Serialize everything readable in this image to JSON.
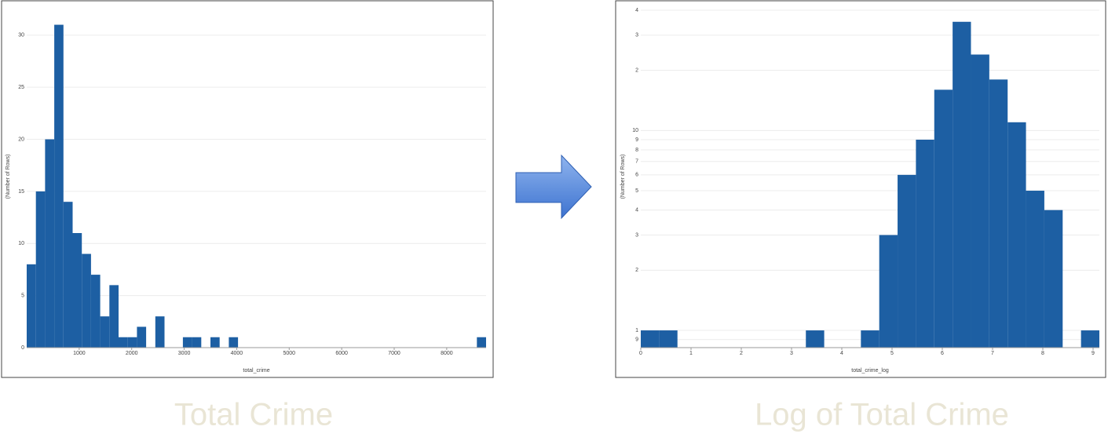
{
  "chart_data": [
    {
      "type": "histogram",
      "title": "Total Crime",
      "x_label": "total_crime",
      "y_label": "(Number of Rows)",
      "bins": [
        0,
        175,
        350,
        525,
        700,
        875,
        1050,
        1225,
        1400,
        1575,
        1750,
        1925,
        2100,
        2275,
        2450,
        2625,
        2800,
        2975,
        3150,
        3325,
        3500,
        3675,
        3850,
        4025,
        4200,
        4375,
        4550,
        4725,
        4900,
        5075,
        5250,
        5425,
        5600,
        5775,
        5950,
        6125,
        6300,
        6475,
        6650,
        6825,
        7000,
        7175,
        7350,
        7525,
        7700,
        7875,
        8050,
        8225,
        8400,
        8575,
        8750
      ],
      "values": [
        8,
        15,
        20,
        31,
        14,
        11,
        9,
        7,
        3,
        6,
        1,
        1,
        2,
        0,
        3,
        0,
        0,
        1,
        1,
        0,
        1,
        0,
        1,
        0,
        0,
        0,
        0,
        0,
        0,
        0,
        0,
        0,
        0,
        0,
        0,
        0,
        0,
        0,
        0,
        0,
        0,
        0,
        0,
        0,
        0,
        0,
        0,
        0,
        0,
        1
      ],
      "color": "#1d5fa3",
      "xlim": [
        0,
        8750
      ],
      "xticks": [
        1000,
        2000,
        3000,
        4000,
        5000,
        6000,
        7000,
        8000
      ],
      "ylim": [
        0,
        33
      ],
      "yticks": [
        0,
        5,
        10,
        15,
        20,
        25,
        30
      ],
      "grid": true,
      "log_y": false
    },
    {
      "type": "histogram",
      "title": "Log of Total Crime",
      "x_label": "total_crime_log",
      "y_label": "(Number of Rows)",
      "bins": [
        0,
        0.365,
        0.73,
        1.095,
        1.46,
        1.825,
        2.19,
        2.555,
        2.92,
        3.285,
        3.65,
        4.015,
        4.38,
        4.745,
        5.11,
        5.475,
        5.84,
        6.205,
        6.57,
        6.935,
        7.3,
        7.665,
        8.03,
        8.395,
        8.76,
        9.125
      ],
      "values": [
        1,
        1,
        0,
        0,
        0,
        0,
        0,
        0,
        0,
        1,
        0,
        0,
        1,
        3,
        6,
        9,
        16,
        35,
        24,
        18,
        11,
        5,
        4,
        0,
        1
      ],
      "color": "#1d5fa3",
      "xlim": [
        0,
        9.125
      ],
      "xticks": [
        0,
        1,
        2,
        3,
        4,
        5,
        6,
        7,
        8,
        9
      ],
      "ylim": [
        0.82,
        43
      ],
      "yticks": [
        {
          "value": 0.9,
          "label": "9"
        },
        1,
        2,
        3,
        4,
        5,
        6,
        7,
        8,
        9,
        10,
        {
          "value": 20,
          "label": "2"
        },
        {
          "value": 30,
          "label": "3"
        },
        {
          "value": 40,
          "label": "4"
        }
      ],
      "grid": true,
      "log_y": true
    }
  ]
}
